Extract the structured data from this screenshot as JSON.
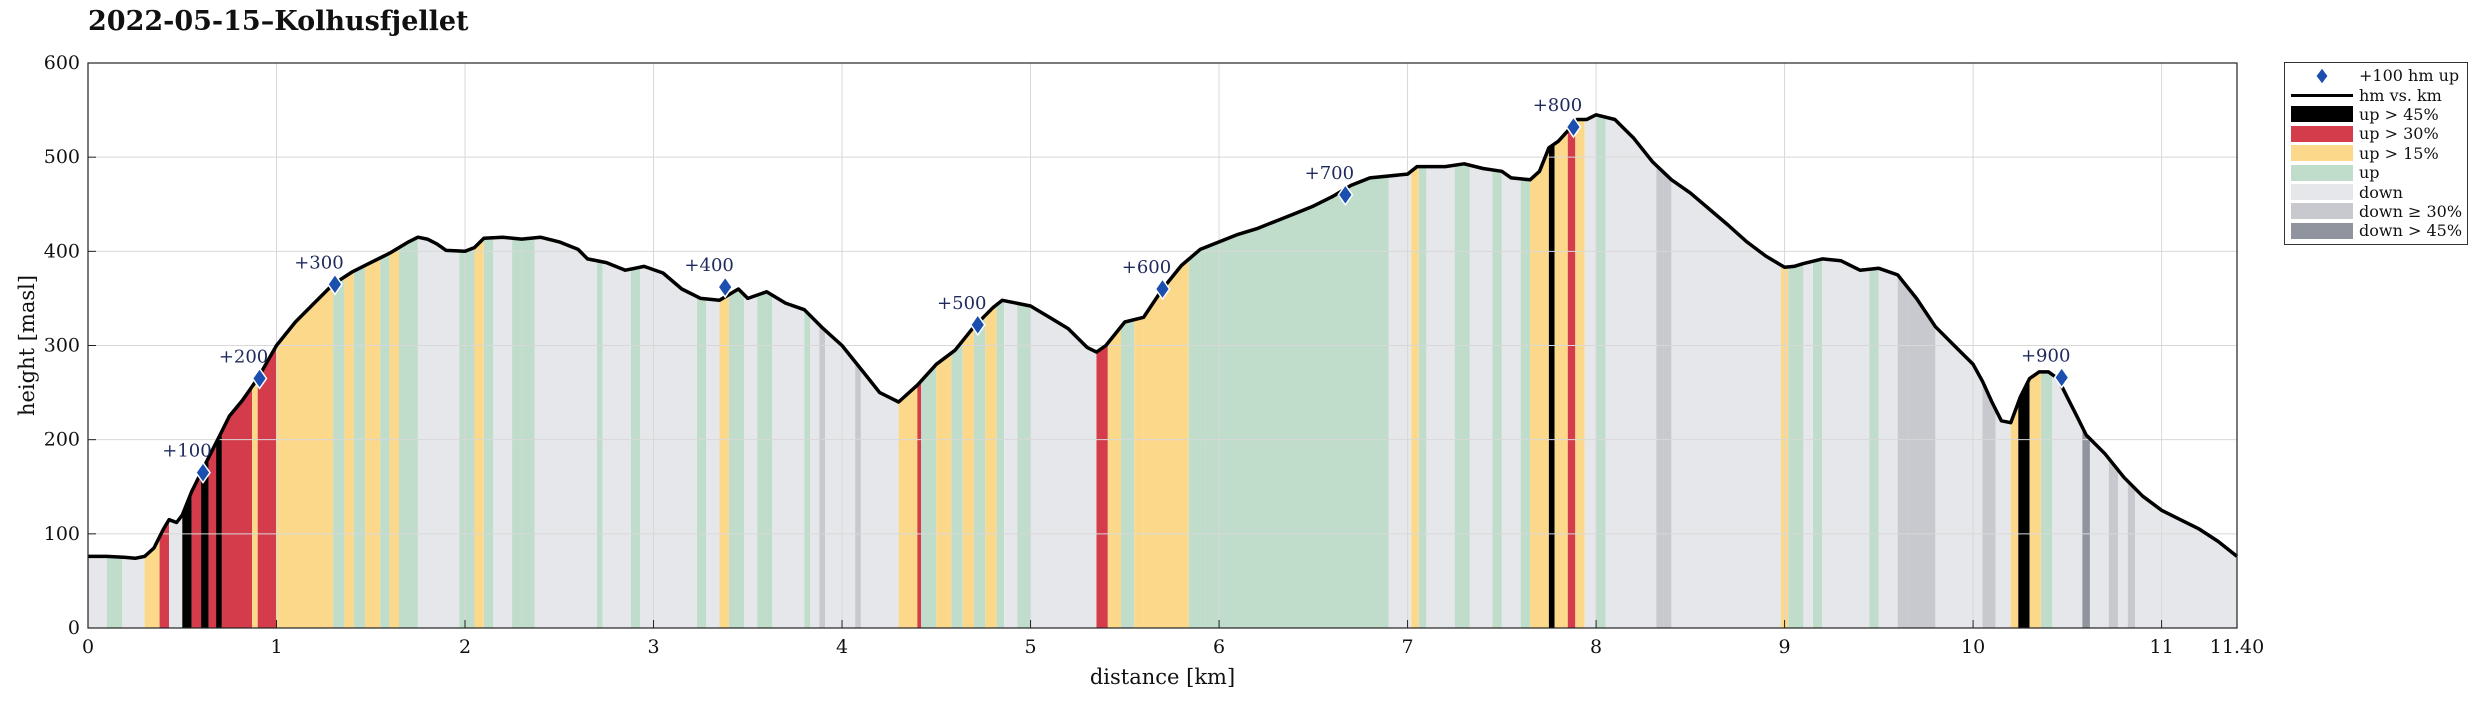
{
  "title": "2022-05-15–Kolhusfjellet",
  "colors": {
    "up45": "#000000",
    "up30": "#d43c4b",
    "up15": "#fcd98a",
    "up": "#c0dccb",
    "down": "#e6e7ea",
    "down30": "#c7c9ce",
    "down45": "#8f949e",
    "line": "#000000",
    "marker": "#1a4fb0",
    "grid": "#d8d8d8"
  },
  "chart_data": {
    "type": "area",
    "xlabel": "distance [km]",
    "ylabel": "height [masl]",
    "xlim": [
      0,
      11.4
    ],
    "ylim": [
      0,
      600
    ],
    "grid": true,
    "legend_position": "outside-right-top",
    "x_ticks": [
      0,
      1,
      2,
      3,
      4,
      5,
      6,
      7,
      8,
      9,
      10,
      11,
      11.4
    ],
    "x_tick_labels": [
      "0",
      "1",
      "2",
      "3",
      "4",
      "5",
      "6",
      "7",
      "8",
      "9",
      "10",
      "11",
      "11.40"
    ],
    "y_ticks": [
      0,
      100,
      200,
      300,
      400,
      500,
      600
    ],
    "y_tick_labels": [
      "0",
      "100",
      "200",
      "300",
      "400",
      "500",
      "600"
    ],
    "profile": {
      "name": "hm vs. km",
      "points": [
        [
          0,
          76
        ],
        [
          0.1,
          76
        ],
        [
          0.2,
          75
        ],
        [
          0.25,
          74
        ],
        [
          0.3,
          76
        ],
        [
          0.35,
          85
        ],
        [
          0.4,
          105
        ],
        [
          0.43,
          115
        ],
        [
          0.47,
          112
        ],
        [
          0.5,
          120
        ],
        [
          0.55,
          145
        ],
        [
          0.6,
          165
        ],
        [
          0.65,
          185
        ],
        [
          0.7,
          205
        ],
        [
          0.75,
          225
        ],
        [
          0.82,
          242
        ],
        [
          0.9,
          265
        ],
        [
          1.0,
          300
        ],
        [
          1.1,
          325
        ],
        [
          1.2,
          345
        ],
        [
          1.3,
          365
        ],
        [
          1.4,
          378
        ],
        [
          1.5,
          388
        ],
        [
          1.6,
          398
        ],
        [
          1.7,
          410
        ],
        [
          1.75,
          415
        ],
        [
          1.8,
          413
        ],
        [
          1.85,
          408
        ],
        [
          1.9,
          401
        ],
        [
          2.0,
          400
        ],
        [
          2.05,
          404
        ],
        [
          2.1,
          414
        ],
        [
          2.2,
          415
        ],
        [
          2.3,
          413
        ],
        [
          2.4,
          415
        ],
        [
          2.5,
          410
        ],
        [
          2.6,
          402
        ],
        [
          2.65,
          392
        ],
        [
          2.75,
          388
        ],
        [
          2.85,
          380
        ],
        [
          2.95,
          384
        ],
        [
          3.05,
          377
        ],
        [
          3.15,
          360
        ],
        [
          3.25,
          350
        ],
        [
          3.35,
          348
        ],
        [
          3.45,
          360
        ],
        [
          3.5,
          350
        ],
        [
          3.6,
          357
        ],
        [
          3.7,
          345
        ],
        [
          3.8,
          338
        ],
        [
          3.9,
          318
        ],
        [
          4.0,
          300
        ],
        [
          4.1,
          275
        ],
        [
          4.2,
          250
        ],
        [
          4.3,
          240
        ],
        [
          4.4,
          258
        ],
        [
          4.5,
          280
        ],
        [
          4.6,
          295
        ],
        [
          4.7,
          320
        ],
        [
          4.8,
          340
        ],
        [
          4.85,
          348
        ],
        [
          4.9,
          346
        ],
        [
          5.0,
          342
        ],
        [
          5.1,
          330
        ],
        [
          5.2,
          318
        ],
        [
          5.3,
          298
        ],
        [
          5.35,
          293
        ],
        [
          5.4,
          300
        ],
        [
          5.5,
          325
        ],
        [
          5.6,
          330
        ],
        [
          5.7,
          360
        ],
        [
          5.8,
          385
        ],
        [
          5.9,
          402
        ],
        [
          6.0,
          410
        ],
        [
          6.1,
          418
        ],
        [
          6.2,
          424
        ],
        [
          6.3,
          432
        ],
        [
          6.4,
          440
        ],
        [
          6.5,
          448
        ],
        [
          6.6,
          458
        ],
        [
          6.7,
          470
        ],
        [
          6.8,
          478
        ],
        [
          6.9,
          480
        ],
        [
          7.0,
          482
        ],
        [
          7.05,
          490
        ],
        [
          7.2,
          490
        ],
        [
          7.3,
          493
        ],
        [
          7.4,
          488
        ],
        [
          7.5,
          485
        ],
        [
          7.55,
          478
        ],
        [
          7.65,
          476
        ],
        [
          7.7,
          485
        ],
        [
          7.75,
          510
        ],
        [
          7.8,
          517
        ],
        [
          7.85,
          528
        ],
        [
          7.9,
          540
        ],
        [
          7.95,
          540
        ],
        [
          8.0,
          545
        ],
        [
          8.1,
          540
        ],
        [
          8.2,
          520
        ],
        [
          8.3,
          495
        ],
        [
          8.4,
          476
        ],
        [
          8.5,
          462
        ],
        [
          8.6,
          445
        ],
        [
          8.7,
          428
        ],
        [
          8.8,
          410
        ],
        [
          8.9,
          395
        ],
        [
          9.0,
          383
        ],
        [
          9.05,
          384
        ],
        [
          9.1,
          387
        ],
        [
          9.2,
          392
        ],
        [
          9.3,
          390
        ],
        [
          9.4,
          380
        ],
        [
          9.5,
          382
        ],
        [
          9.6,
          375
        ],
        [
          9.7,
          350
        ],
        [
          9.8,
          320
        ],
        [
          9.9,
          300
        ],
        [
          10.0,
          280
        ],
        [
          10.05,
          262
        ],
        [
          10.1,
          240
        ],
        [
          10.15,
          220
        ],
        [
          10.2,
          218
        ],
        [
          10.25,
          245
        ],
        [
          10.3,
          265
        ],
        [
          10.35,
          272
        ],
        [
          10.4,
          272
        ],
        [
          10.45,
          265
        ],
        [
          10.5,
          245
        ],
        [
          10.55,
          225
        ],
        [
          10.6,
          205
        ],
        [
          10.7,
          185
        ],
        [
          10.8,
          160
        ],
        [
          10.9,
          140
        ],
        [
          11.0,
          125
        ],
        [
          11.1,
          115
        ],
        [
          11.2,
          105
        ],
        [
          11.3,
          92
        ],
        [
          11.4,
          76
        ]
      ]
    },
    "segments": [
      [
        0.0,
        0.3,
        "down"
      ],
      [
        0.1,
        0.18,
        "up"
      ],
      [
        0.3,
        0.38,
        "up15"
      ],
      [
        0.38,
        0.43,
        "up30"
      ],
      [
        0.43,
        0.5,
        "down"
      ],
      [
        0.5,
        0.55,
        "up45"
      ],
      [
        0.55,
        0.6,
        "up30"
      ],
      [
        0.6,
        0.64,
        "up45"
      ],
      [
        0.64,
        0.69,
        "up30"
      ],
      [
        0.68,
        0.71,
        "up45"
      ],
      [
        0.71,
        0.87,
        "up30"
      ],
      [
        0.87,
        0.9,
        "up15"
      ],
      [
        0.9,
        1.0,
        "up30"
      ],
      [
        1.0,
        1.3,
        "up15"
      ],
      [
        1.3,
        1.36,
        "up"
      ],
      [
        1.36,
        1.41,
        "up15"
      ],
      [
        1.41,
        1.47,
        "up"
      ],
      [
        1.47,
        1.55,
        "up15"
      ],
      [
        1.55,
        1.6,
        "up"
      ],
      [
        1.6,
        1.65,
        "up15"
      ],
      [
        1.65,
        1.75,
        "up"
      ],
      [
        1.75,
        1.97,
        "down"
      ],
      [
        1.97,
        2.05,
        "up"
      ],
      [
        2.05,
        2.1,
        "up15"
      ],
      [
        2.1,
        2.15,
        "up"
      ],
      [
        2.15,
        2.25,
        "down"
      ],
      [
        2.25,
        2.3,
        "up"
      ],
      [
        2.3,
        2.37,
        "up"
      ],
      [
        2.37,
        2.7,
        "down"
      ],
      [
        2.7,
        2.73,
        "up"
      ],
      [
        2.73,
        2.88,
        "down"
      ],
      [
        2.88,
        2.93,
        "up"
      ],
      [
        2.93,
        3.23,
        "down"
      ],
      [
        3.23,
        3.28,
        "up"
      ],
      [
        3.28,
        3.35,
        "down"
      ],
      [
        3.35,
        3.4,
        "up15"
      ],
      [
        3.4,
        3.48,
        "up"
      ],
      [
        3.48,
        3.55,
        "down"
      ],
      [
        3.55,
        3.63,
        "up"
      ],
      [
        3.63,
        3.8,
        "down"
      ],
      [
        3.8,
        3.83,
        "up"
      ],
      [
        3.83,
        3.88,
        "down"
      ],
      [
        3.88,
        3.91,
        "down30"
      ],
      [
        3.91,
        4.07,
        "down"
      ],
      [
        4.07,
        4.1,
        "down30"
      ],
      [
        4.1,
        4.3,
        "down"
      ],
      [
        4.3,
        4.4,
        "up15"
      ],
      [
        4.4,
        4.42,
        "up30"
      ],
      [
        4.42,
        4.5,
        "up"
      ],
      [
        4.5,
        4.58,
        "up15"
      ],
      [
        4.58,
        4.64,
        "up"
      ],
      [
        4.64,
        4.7,
        "up15"
      ],
      [
        4.7,
        4.76,
        "up"
      ],
      [
        4.76,
        4.82,
        "up15"
      ],
      [
        4.82,
        4.86,
        "up"
      ],
      [
        4.86,
        4.93,
        "down"
      ],
      [
        4.93,
        5.0,
        "up"
      ],
      [
        5.0,
        5.35,
        "down"
      ],
      [
        5.35,
        5.41,
        "up30"
      ],
      [
        5.41,
        5.48,
        "up15"
      ],
      [
        5.48,
        5.55,
        "up"
      ],
      [
        5.55,
        5.6,
        "up15"
      ],
      [
        5.6,
        5.84,
        "up15"
      ],
      [
        5.84,
        5.93,
        "up"
      ],
      [
        5.93,
        6.9,
        "up"
      ],
      [
        6.9,
        7.02,
        "down"
      ],
      [
        7.02,
        7.06,
        "up15"
      ],
      [
        7.06,
        7.1,
        "up"
      ],
      [
        7.1,
        7.25,
        "down"
      ],
      [
        7.25,
        7.33,
        "up"
      ],
      [
        7.33,
        7.45,
        "down"
      ],
      [
        7.45,
        7.5,
        "up"
      ],
      [
        7.5,
        7.6,
        "down"
      ],
      [
        7.6,
        7.65,
        "up"
      ],
      [
        7.65,
        7.75,
        "up15"
      ],
      [
        7.75,
        7.78,
        "up45"
      ],
      [
        7.78,
        7.85,
        "up15"
      ],
      [
        7.85,
        7.89,
        "up30"
      ],
      [
        7.89,
        7.94,
        "up15"
      ],
      [
        7.94,
        8.0,
        "down"
      ],
      [
        8.0,
        8.05,
        "up"
      ],
      [
        8.05,
        8.32,
        "down"
      ],
      [
        8.32,
        8.36,
        "down30"
      ],
      [
        8.36,
        8.4,
        "down30"
      ],
      [
        8.4,
        8.98,
        "down"
      ],
      [
        8.98,
        9.02,
        "up15"
      ],
      [
        9.02,
        9.1,
        "up"
      ],
      [
        9.1,
        9.15,
        "down"
      ],
      [
        9.15,
        9.2,
        "up"
      ],
      [
        9.2,
        9.45,
        "down"
      ],
      [
        9.45,
        9.5,
        "up"
      ],
      [
        9.5,
        9.6,
        "down"
      ],
      [
        9.6,
        9.65,
        "down30"
      ],
      [
        9.65,
        9.8,
        "down30"
      ],
      [
        9.8,
        10.05,
        "down"
      ],
      [
        10.05,
        10.12,
        "down30"
      ],
      [
        10.12,
        10.2,
        "down"
      ],
      [
        10.2,
        10.24,
        "up15"
      ],
      [
        10.24,
        10.3,
        "up45"
      ],
      [
        10.3,
        10.36,
        "up15"
      ],
      [
        10.36,
        10.42,
        "up"
      ],
      [
        10.42,
        10.58,
        "down"
      ],
      [
        10.58,
        10.62,
        "down45"
      ],
      [
        10.62,
        10.72,
        "down"
      ],
      [
        10.72,
        10.77,
        "down30"
      ],
      [
        10.77,
        10.82,
        "down"
      ],
      [
        10.82,
        10.86,
        "down30"
      ],
      [
        10.86,
        11.4,
        "down"
      ]
    ],
    "markers": [
      {
        "label": "+100",
        "x": 0.61,
        "y": 165
      },
      {
        "label": "+200",
        "x": 0.91,
        "y": 265
      },
      {
        "label": "+300",
        "x": 1.31,
        "y": 365
      },
      {
        "label": "+400",
        "x": 3.38,
        "y": 362
      },
      {
        "label": "+500",
        "x": 4.72,
        "y": 322
      },
      {
        "label": "+600",
        "x": 5.7,
        "y": 360
      },
      {
        "label": "+700",
        "x": 6.67,
        "y": 460
      },
      {
        "label": "+800",
        "x": 7.88,
        "y": 532
      },
      {
        "label": "+900",
        "x": 10.47,
        "y": 266
      }
    ],
    "legend": [
      {
        "label": "+100 hm up",
        "kind": "marker",
        "color_key": "marker"
      },
      {
        "label": "hm vs. km",
        "kind": "line",
        "color_key": "line"
      },
      {
        "label": "up > 45%",
        "kind": "patch",
        "color_key": "up45"
      },
      {
        "label": "up > 30%",
        "kind": "patch",
        "color_key": "up30"
      },
      {
        "label": "up > 15%",
        "kind": "patch",
        "color_key": "up15"
      },
      {
        "label": "up",
        "kind": "patch",
        "color_key": "up"
      },
      {
        "label": "down",
        "kind": "patch",
        "color_key": "down"
      },
      {
        "label": "down ≥ 30%",
        "kind": "patch",
        "color_key": "down30"
      },
      {
        "label": "down > 45%",
        "kind": "patch",
        "color_key": "down45"
      }
    ]
  }
}
